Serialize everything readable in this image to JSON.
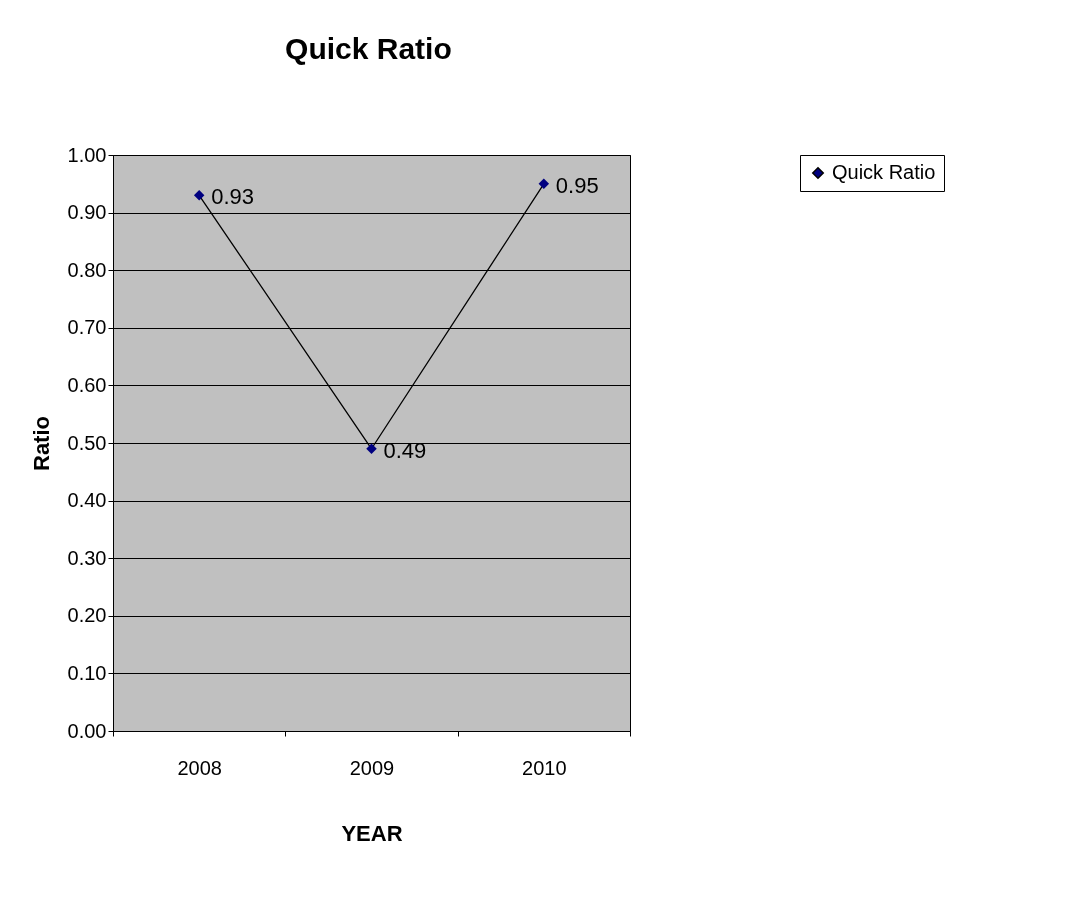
{
  "chart_data": {
    "type": "line",
    "title": "Quick Ratio",
    "xlabel": "YEAR",
    "ylabel": "Ratio",
    "categories": [
      "2008",
      "2009",
      "2010"
    ],
    "series": [
      {
        "name": "Quick Ratio",
        "color": "#000080",
        "values": [
          0.93,
          0.49,
          0.95
        ]
      }
    ],
    "ylim": [
      0,
      1
    ],
    "yticks": [
      {
        "value": 0,
        "label": "0.00"
      },
      {
        "value": 0.1,
        "label": "0.10"
      },
      {
        "value": 0.2,
        "label": "0.20"
      },
      {
        "value": 0.3,
        "label": "0.30"
      },
      {
        "value": 0.4,
        "label": "0.40"
      },
      {
        "value": 0.5,
        "label": "0.50"
      },
      {
        "value": 0.6,
        "label": "0.60"
      },
      {
        "value": 0.7,
        "label": "0.70"
      },
      {
        "value": 0.8,
        "label": "0.80"
      },
      {
        "value": 0.9,
        "label": "0.90"
      },
      {
        "value": 1,
        "label": "1.00"
      }
    ],
    "grid": "y",
    "legend": "right",
    "marker": "diamond",
    "data_labels": true
  }
}
